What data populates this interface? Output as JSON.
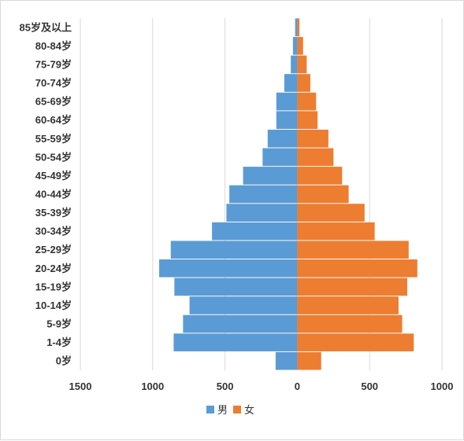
{
  "chart_data": {
    "type": "bar",
    "orientation": "horizontal",
    "layout": "population-pyramid",
    "categories": [
      "0岁",
      "1-4岁",
      "5-9岁",
      "10-14岁",
      "15-19岁",
      "20-24岁",
      "25-29岁",
      "30-34岁",
      "35-39岁",
      "40-44岁",
      "45-49岁",
      "50-54岁",
      "55-59岁",
      "60-64岁",
      "65-69岁",
      "70-74岁",
      "75-79岁",
      "80-84岁",
      "85岁及以上"
    ],
    "series": [
      {
        "name": "男",
        "color": "#5B9BD5",
        "side": "left",
        "values": [
          150,
          855,
          790,
          745,
          850,
          955,
          875,
          590,
          490,
          470,
          375,
          240,
          205,
          145,
          145,
          90,
          45,
          30,
          15
        ]
      },
      {
        "name": "女",
        "color": "#ED7D31",
        "side": "right",
        "values": [
          165,
          805,
          725,
          700,
          760,
          830,
          770,
          535,
          465,
          355,
          310,
          250,
          215,
          140,
          130,
          90,
          65,
          40,
          15
        ]
      }
    ],
    "x_ticks": [
      "1500",
      "1000",
      "500",
      "0",
      "500",
      "1000"
    ],
    "xlim": [
      -1500,
      1000
    ],
    "xlabel": "",
    "ylabel": "",
    "title": "",
    "grid": "vertical",
    "legend_position": "bottom"
  }
}
